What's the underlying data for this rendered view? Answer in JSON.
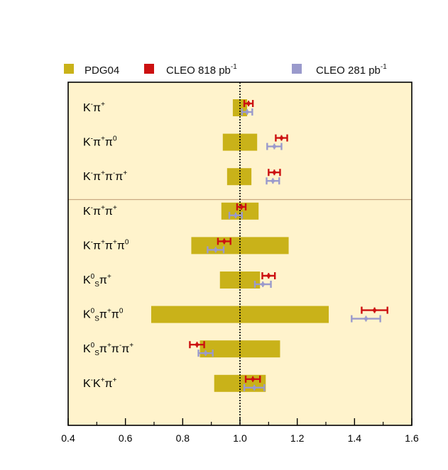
{
  "chart_data": {
    "type": "bar",
    "title": "",
    "xlabel": "",
    "ylabel": "",
    "xlim": [
      0.4,
      1.6
    ],
    "x_ticks": [
      "0.4",
      "0.6",
      "0.8",
      "1.0",
      "1.2",
      "1.4",
      "1.6"
    ],
    "reference_line": 1.0,
    "separator_after_index": 2,
    "legend_placement": "top",
    "colors": {
      "background": "#fff3cc",
      "pdg": "#c9b219",
      "cleo818": "#cc1111",
      "cleo281": "#9a9acc",
      "separator": "#caa882"
    },
    "legend": [
      {
        "label": "PDG04",
        "sup": ""
      },
      {
        "label": "CLEO 818 pb",
        "sup": "-1"
      },
      {
        "label": "CLEO 281 pb",
        "sup": "-1"
      }
    ],
    "categories": [
      {
        "label": [
          [
            "K",
            "",
            ""
          ],
          [
            "",
            "-",
            "sup"
          ],
          [
            "π",
            "",
            ""
          ],
          [
            "",
            "+",
            "sup"
          ]
        ]
      },
      {
        "label": [
          [
            "K",
            "",
            ""
          ],
          [
            "",
            "-",
            "sup"
          ],
          [
            "π",
            "",
            ""
          ],
          [
            "",
            "+",
            "sup"
          ],
          [
            "π",
            "",
            ""
          ],
          [
            "",
            "0",
            "sup"
          ]
        ]
      },
      {
        "label": [
          [
            "K",
            "",
            ""
          ],
          [
            "",
            "-",
            "sup"
          ],
          [
            "π",
            "",
            ""
          ],
          [
            "",
            "+",
            "sup"
          ],
          [
            "π",
            "",
            ""
          ],
          [
            "",
            "-",
            "sup"
          ],
          [
            "π",
            "",
            ""
          ],
          [
            "",
            "+",
            "sup"
          ]
        ]
      },
      {
        "label": [
          [
            "K",
            "",
            ""
          ],
          [
            "",
            "-",
            "sup"
          ],
          [
            "π",
            "",
            ""
          ],
          [
            "",
            "+",
            "sup"
          ],
          [
            "π",
            "",
            ""
          ],
          [
            "",
            "+",
            "sup"
          ]
        ]
      },
      {
        "label": [
          [
            "K",
            "",
            ""
          ],
          [
            "",
            "-",
            "sup"
          ],
          [
            "π",
            "",
            ""
          ],
          [
            "",
            "+",
            "sup"
          ],
          [
            "π",
            "",
            ""
          ],
          [
            "",
            "+",
            "sup"
          ],
          [
            "π",
            "",
            ""
          ],
          [
            "",
            "0",
            "sup"
          ]
        ]
      },
      {
        "label": [
          [
            "K",
            "",
            ""
          ],
          [
            "",
            "0",
            "sup"
          ],
          [
            "",
            "S",
            "sub"
          ],
          [
            "π",
            "",
            ""
          ],
          [
            "",
            "+",
            "sup"
          ]
        ]
      },
      {
        "label": [
          [
            "K",
            "",
            ""
          ],
          [
            "",
            "0",
            "sup"
          ],
          [
            "",
            "S",
            "sub"
          ],
          [
            "π",
            "",
            ""
          ],
          [
            "",
            "+",
            "sup"
          ],
          [
            "π",
            "",
            ""
          ],
          [
            "",
            "0",
            "sup"
          ]
        ]
      },
      {
        "label": [
          [
            "K",
            "",
            ""
          ],
          [
            "",
            "0",
            "sup"
          ],
          [
            "",
            "S",
            "sub"
          ],
          [
            "π",
            "",
            ""
          ],
          [
            "",
            "+",
            "sup"
          ],
          [
            "π",
            "",
            ""
          ],
          [
            "",
            "-",
            "sup"
          ],
          [
            "π",
            "",
            ""
          ],
          [
            "",
            "+",
            "sup"
          ]
        ]
      },
      {
        "label": [
          [
            "K",
            "",
            ""
          ],
          [
            "",
            "-",
            "sup"
          ],
          [
            "K",
            "",
            ""
          ],
          [
            "",
            "+",
            "sup"
          ],
          [
            "π",
            "",
            ""
          ],
          [
            "",
            "+",
            "sup"
          ]
        ]
      }
    ],
    "series": [
      {
        "name": "PDG04",
        "kind": "bar-range",
        "ranges": [
          [
            0.975,
            1.025
          ],
          [
            0.94,
            1.06
          ],
          [
            0.955,
            1.04
          ],
          [
            0.935,
            1.065
          ],
          [
            0.83,
            1.17
          ],
          [
            0.93,
            1.07
          ],
          [
            0.69,
            1.31
          ],
          [
            0.86,
            1.14
          ],
          [
            0.91,
            1.09
          ]
        ]
      },
      {
        "name": "CLEO 818 pb-1",
        "kind": "errorbar",
        "values": [
          1.03,
          1.145,
          1.12,
          1.005,
          0.945,
          1.1,
          1.47,
          0.85,
          1.045
        ],
        "errors": [
          0.015,
          0.02,
          0.02,
          0.015,
          0.022,
          0.022,
          0.045,
          0.025,
          0.025
        ]
      },
      {
        "name": "CLEO 281 pb-1",
        "kind": "errorbar",
        "values": [
          1.025,
          1.12,
          1.115,
          0.985,
          0.915,
          1.08,
          1.44,
          0.88,
          1.05
        ],
        "errors": [
          0.018,
          0.025,
          0.022,
          0.022,
          0.028,
          0.028,
          0.05,
          0.025,
          0.035
        ]
      }
    ]
  }
}
